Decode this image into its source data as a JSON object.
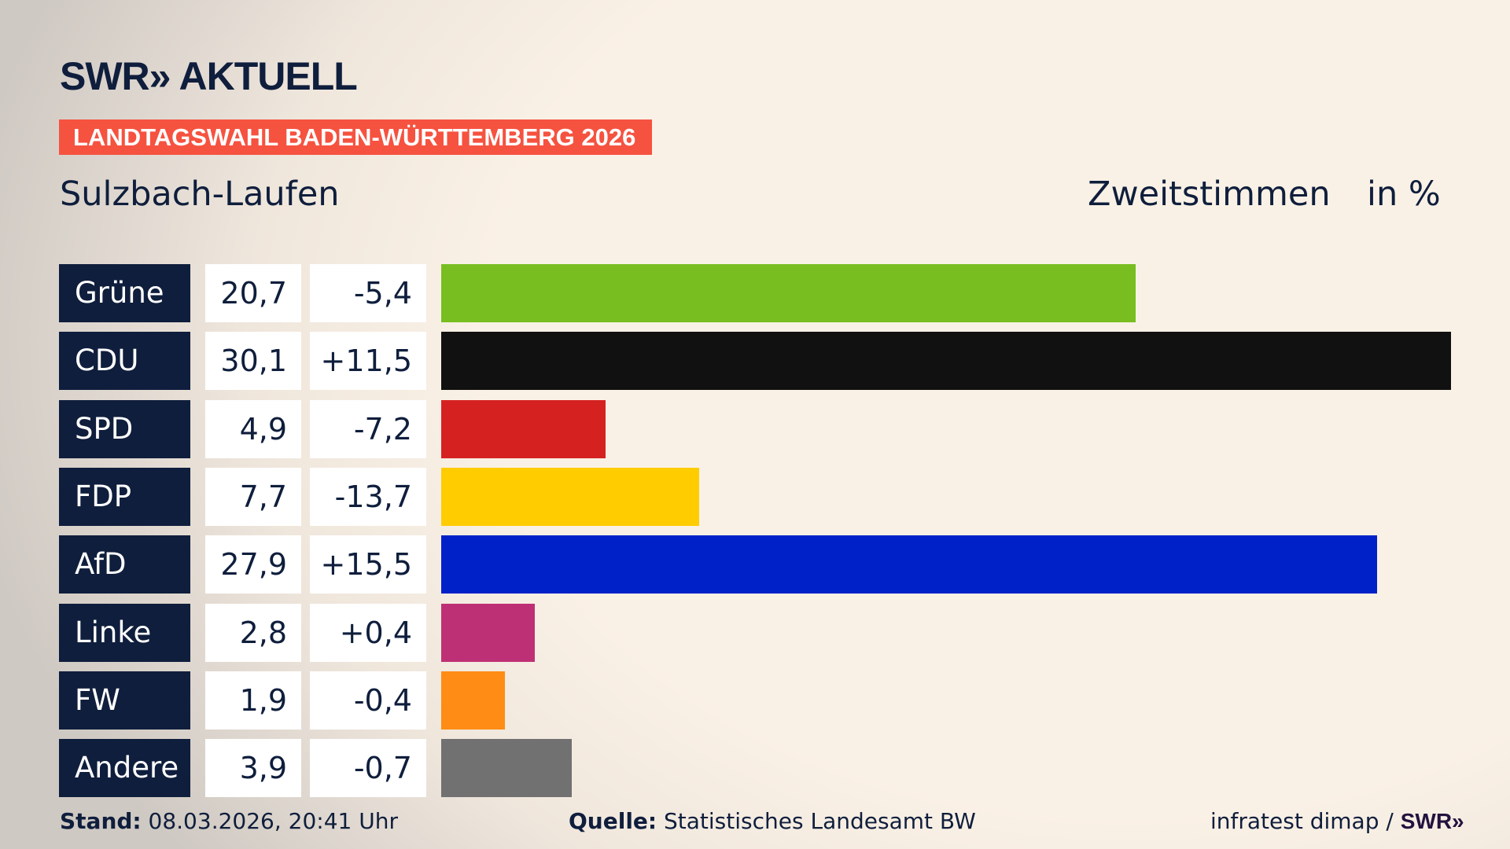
{
  "header": {
    "logo": "SWR» AKTUELL",
    "banner": "LANDTAGSWAHL BADEN-WÜRTTEMBERG 2026",
    "region": "Sulzbach-Laufen",
    "vote_type": "Zweitstimmen",
    "unit": "in %"
  },
  "chart_data": {
    "type": "bar",
    "orientation": "horizontal",
    "categories": [
      "Grüne",
      "CDU",
      "SPD",
      "FDP",
      "AfD",
      "Linke",
      "FW",
      "Andere"
    ],
    "values": [
      20.7,
      30.1,
      4.9,
      7.7,
      27.9,
      2.8,
      1.9,
      3.9
    ],
    "value_labels": [
      "20,7",
      "30,1",
      "4,9",
      "7,7",
      "27,9",
      "2,8",
      "1,9",
      "3,9"
    ],
    "diff_labels": [
      "-5,4",
      "+11,5",
      "-7,2",
      "-13,7",
      "+15,5",
      "+0,4",
      "-0,4",
      "-0,7"
    ],
    "diffs": [
      -5.4,
      11.5,
      -7.2,
      -13.7,
      15.5,
      0.4,
      -0.4,
      -0.7
    ],
    "colors": [
      "#78be20",
      "#111111",
      "#d52221",
      "#ffcc00",
      "#0021c7",
      "#be3075",
      "#ff8c14",
      "#717171"
    ],
    "grid": false
  },
  "footer": {
    "stand_label": "Stand:",
    "stand_value": "08.03.2026, 20:41 Uhr",
    "source_label": "Quelle:",
    "source_value": "Statistisches Landesamt BW",
    "credit": "infratest dimap / ",
    "credit_logo": "SWR»"
  }
}
